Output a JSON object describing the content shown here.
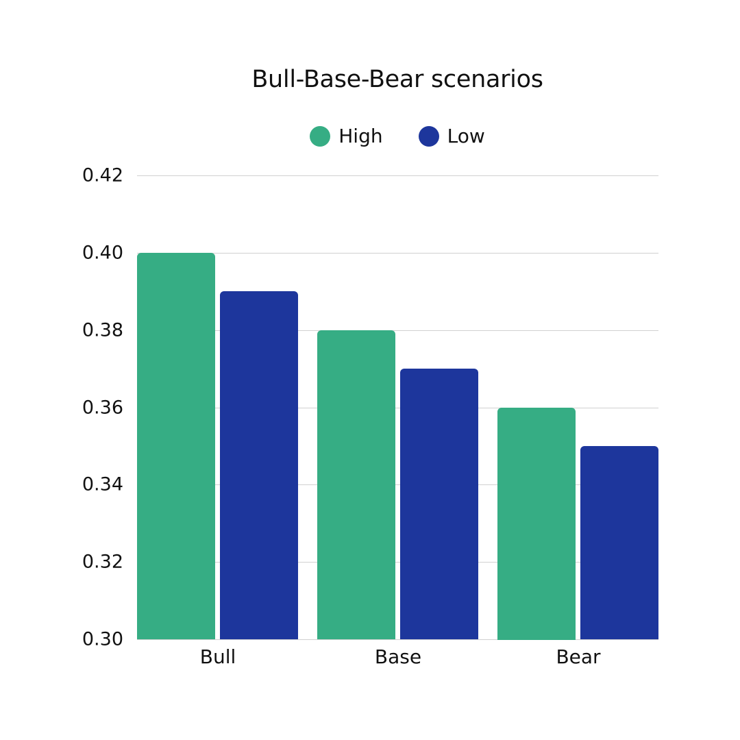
{
  "chart_data": {
    "type": "bar",
    "title": "Bull-Base-Bear scenarios",
    "categories": [
      "Bull",
      "Base",
      "Bear"
    ],
    "series": [
      {
        "name": "High",
        "color": "#36ad84",
        "values": [
          0.4,
          0.38,
          0.36
        ]
      },
      {
        "name": "Low",
        "color": "#1d369c",
        "values": [
          0.39,
          0.37,
          0.35
        ]
      }
    ],
    "xlabel": "",
    "ylabel": "",
    "ylim": [
      0.3,
      0.42
    ],
    "yticks": [
      "0.42",
      "0.40",
      "0.38",
      "0.36",
      "0.34",
      "0.32",
      "0.30"
    ],
    "grid": true,
    "legend_position": "top"
  },
  "legend": {
    "high_label": "High",
    "low_label": "Low"
  },
  "colors": {
    "high": "#36ad84",
    "low": "#1d369c",
    "grid": "#d0d0d0"
  }
}
